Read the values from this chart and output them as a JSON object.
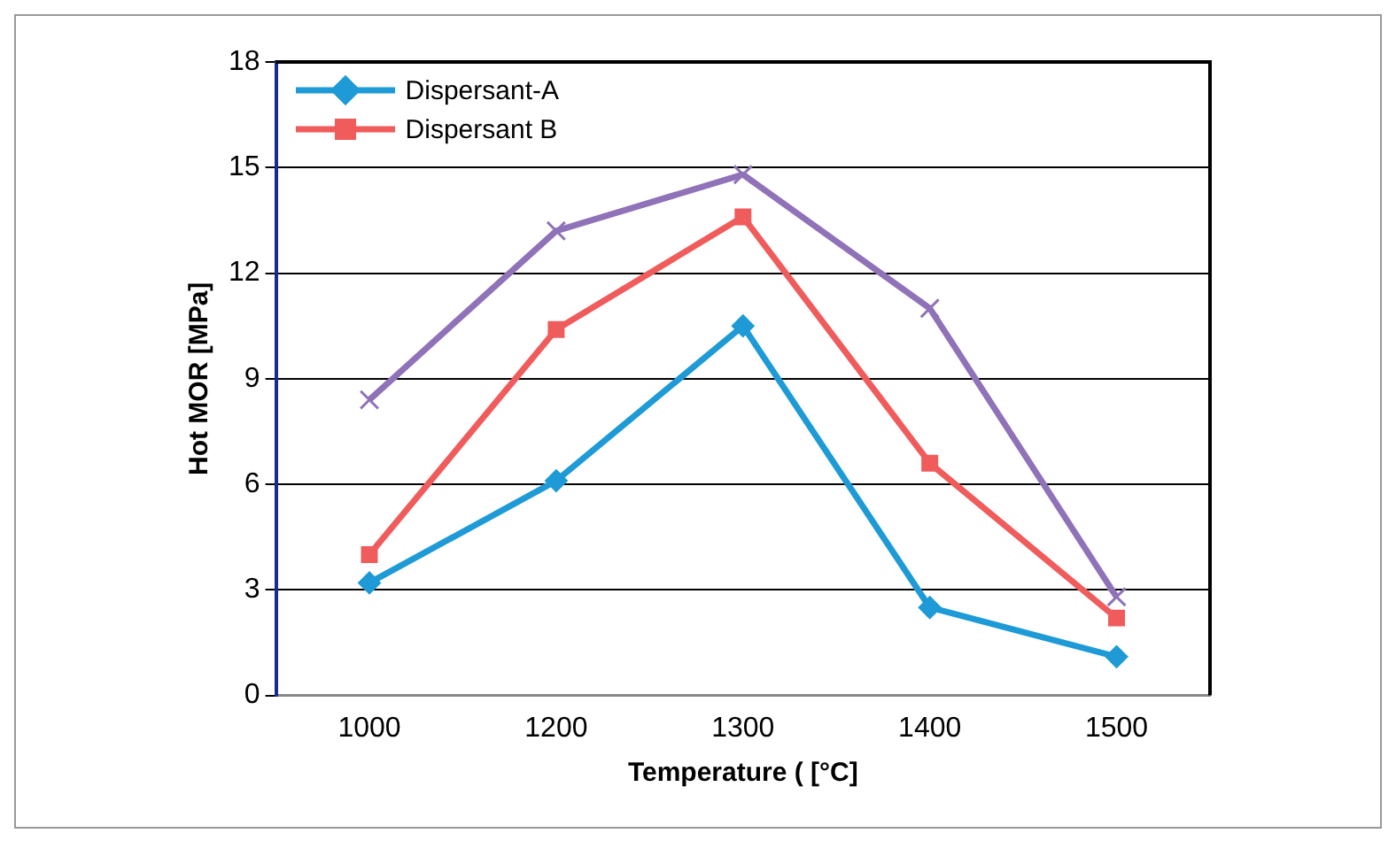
{
  "chart_data": {
    "type": "line",
    "xlabel": "Temperature ( [°C]",
    "ylabel": "Hot MOR [MPa]",
    "categories": [
      "1000",
      "1200",
      "1300",
      "1400",
      "1500"
    ],
    "series": [
      {
        "name": "Dispersant-A",
        "color": "#1e9ad6",
        "marker": "diamond",
        "values": [
          3.2,
          6.1,
          10.5,
          2.5,
          1.1
        ]
      },
      {
        "name": "Dispersant B",
        "color": "#f05b5b",
        "marker": "square",
        "values": [
          4.0,
          10.4,
          13.6,
          6.6,
          2.2
        ]
      },
      {
        "color": "#8f72b8",
        "marker": "cross",
        "values": [
          8.4,
          13.2,
          14.8,
          11.0,
          2.8
        ]
      }
    ],
    "ylim": [
      0,
      18
    ],
    "yticks": [
      0,
      3,
      6,
      9,
      12,
      15,
      18
    ],
    "grid": "y",
    "legend": "top left",
    "line_style": "solid"
  }
}
